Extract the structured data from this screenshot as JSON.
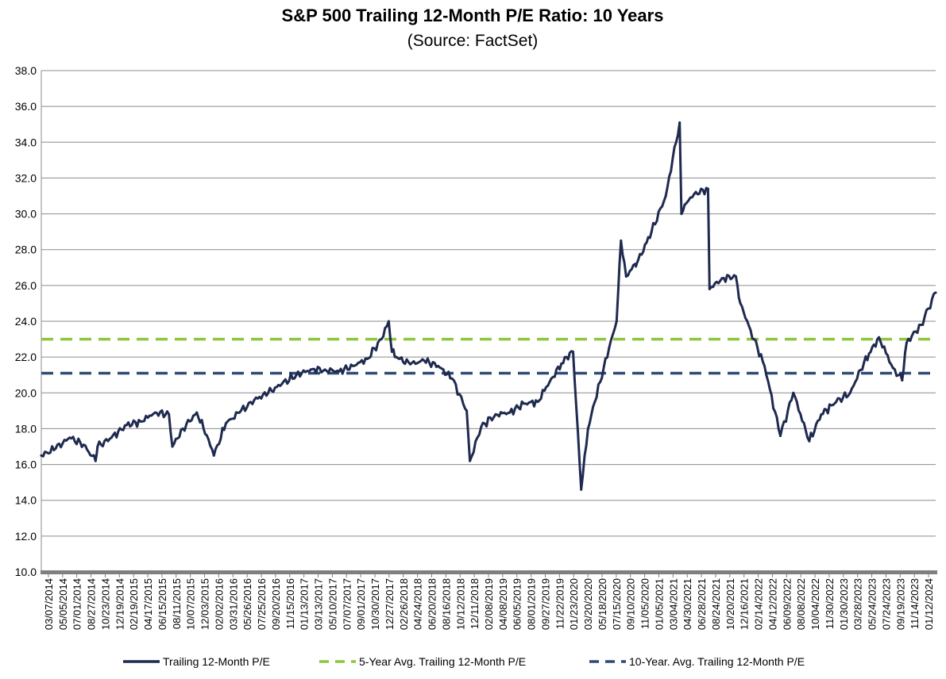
{
  "chart_data": {
    "type": "line",
    "title": "S&P 500 Trailing 12-Month P/E Ratio: 10 Years",
    "subtitle": "(Source: FactSet)",
    "xlabel": "",
    "ylabel": "",
    "ylim": [
      10,
      38
    ],
    "y_ticks": [
      "10.0",
      "12.0",
      "14.0",
      "16.0",
      "18.0",
      "20.0",
      "22.0",
      "24.0",
      "26.0",
      "28.0",
      "30.0",
      "32.0",
      "34.0",
      "36.0",
      "38.0"
    ],
    "x_tick_labels": [
      "03/07/2014",
      "05/05/2014",
      "07/01/2014",
      "08/27/2014",
      "10/23/2014",
      "12/19/2014",
      "02/19/2015",
      "04/17/2015",
      "06/15/2015",
      "08/11/2015",
      "10/07/2015",
      "12/03/2015",
      "02/02/2016",
      "03/31/2016",
      "05/26/2016",
      "07/25/2016",
      "09/20/2016",
      "11/15/2016",
      "01/13/2017",
      "03/13/2017",
      "05/10/2017",
      "07/07/2017",
      "09/01/2017",
      "10/30/2017",
      "12/27/2017",
      "02/26/2018",
      "04/24/2018",
      "06/20/2018",
      "08/16/2018",
      "10/12/2018",
      "12/11/2018",
      "02/08/2019",
      "04/08/2019",
      "06/05/2019",
      "08/01/2019",
      "09/27/2019",
      "11/22/2019",
      "01/23/2020",
      "03/20/2020",
      "05/18/2020",
      "07/15/2020",
      "09/10/2020",
      "11/05/2020",
      "01/05/2021",
      "03/04/2021",
      "04/30/2021",
      "06/28/2021",
      "08/24/2021",
      "10/20/2021",
      "12/16/2021",
      "02/14/2022",
      "04/12/2022",
      "06/09/2022",
      "08/08/2022",
      "10/04/2022",
      "11/30/2022",
      "01/30/2023",
      "03/28/2023",
      "05/24/2023",
      "07/24/2023",
      "09/19/2023",
      "11/14/2023",
      "01/12/2024"
    ],
    "grid": true,
    "legend": "bottom",
    "colors": {
      "pe": "#1f2a4f",
      "avg5": "#8dc63f",
      "avg10": "#2e4a75",
      "grid": "#8c8c8c",
      "axis": "#7f7f7f"
    },
    "series": [
      {
        "name": "Trailing 12-Month P/E",
        "style": "solid",
        "x": [
          "2014-03-07",
          "2014-05-05",
          "2014-07-01",
          "2014-08-27",
          "2014-10-15",
          "2014-10-23",
          "2014-12-19",
          "2015-02-19",
          "2015-04-17",
          "2015-06-15",
          "2015-08-11",
          "2015-08-25",
          "2015-10-07",
          "2015-12-03",
          "2016-01-20",
          "2016-02-11",
          "2016-03-31",
          "2016-05-26",
          "2016-07-25",
          "2016-09-20",
          "2016-11-15",
          "2017-01-13",
          "2017-03-13",
          "2017-05-10",
          "2017-07-07",
          "2017-09-01",
          "2017-10-30",
          "2017-12-27",
          "2018-01-26",
          "2018-02-08",
          "2018-02-26",
          "2018-04-24",
          "2018-06-20",
          "2018-08-16",
          "2018-10-12",
          "2018-12-11",
          "2018-12-24",
          "2019-02-08",
          "2019-04-08",
          "2019-06-05",
          "2019-08-01",
          "2019-09-27",
          "2019-11-22",
          "2020-01-23",
          "2020-02-19",
          "2020-03-23",
          "2020-04-20",
          "2020-05-18",
          "2020-07-15",
          "2020-08-15",
          "2020-09-02",
          "2020-09-23",
          "2020-10-30",
          "2020-11-05",
          "2021-01-05",
          "2021-03-04",
          "2021-04-30",
          "2021-05-07",
          "2021-05-20",
          "2021-06-28",
          "2021-08-24",
          "2021-08-30",
          "2021-10-20",
          "2021-12-16",
          "2022-01-03",
          "2022-02-14",
          "2022-04-12",
          "2022-06-16",
          "2022-08-08",
          "2022-10-12",
          "2022-11-30",
          "2023-01-30",
          "2023-03-28",
          "2023-05-24",
          "2023-07-24",
          "2023-09-19",
          "2023-10-27",
          "2023-11-14",
          "2024-01-12",
          "2024-03-12"
        ],
        "values": [
          16.5,
          16.9,
          17.5,
          17.1,
          16.2,
          17.0,
          17.5,
          18.2,
          18.4,
          18.9,
          18.8,
          17.0,
          18.0,
          18.9,
          17.4,
          16.5,
          18.3,
          18.9,
          19.6,
          20.0,
          20.5,
          21.0,
          21.3,
          21.3,
          21.2,
          21.5,
          21.9,
          23.0,
          24.0,
          22.3,
          22.0,
          21.6,
          21.8,
          21.5,
          20.8,
          19.0,
          16.2,
          18.1,
          18.8,
          18.9,
          19.4,
          19.5,
          20.8,
          22.0,
          22.3,
          14.6,
          18.0,
          19.5,
          22.5,
          24.0,
          28.5,
          26.5,
          27.2,
          27.2,
          29.0,
          31.0,
          35.1,
          30.0,
          30.5,
          31.1,
          31.4,
          25.8,
          26.4,
          26.5,
          25.0,
          23.5,
          21.5,
          17.6,
          20.0,
          17.3,
          18.8,
          19.5,
          20.0,
          21.7,
          23.1,
          21.4,
          20.7,
          22.8,
          23.8,
          25.6
        ]
      },
      {
        "name": "5-Year Avg. Trailing 12-Month P/E",
        "style": "dashed",
        "value": 23.0
      },
      {
        "name": "10-Year. Avg. Trailing 12-Month P/E",
        "style": "dashed",
        "value": 21.1
      }
    ]
  }
}
